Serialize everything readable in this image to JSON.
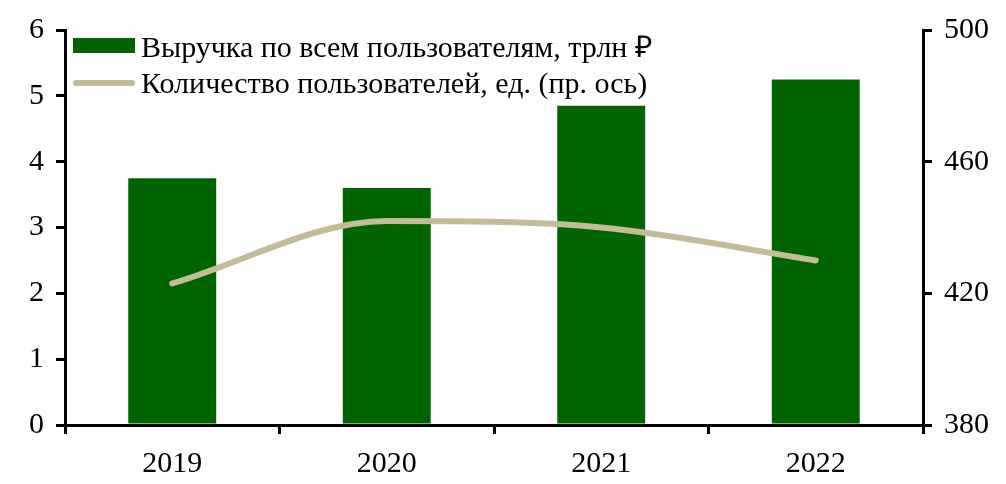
{
  "chart_data": {
    "type": "bar",
    "categories": [
      "2019",
      "2020",
      "2021",
      "2022"
    ],
    "series": [
      {
        "name": "Выручка по всем пользователям, трлн ₽",
        "color": "#006400",
        "values": [
          3.75,
          3.6,
          4.85,
          5.25
        ]
      },
      {
        "name": "Количество пользователей, ед. (пр. ось)",
        "type": "line",
        "axis": "y2",
        "color": "#c4bc98",
        "values": [
          423,
          442,
          440,
          430
        ]
      }
    ],
    "ylim": [
      0,
      6
    ],
    "yticks": [
      0,
      1,
      2,
      3,
      4,
      5,
      6
    ],
    "y2lim": [
      380,
      500
    ],
    "y2ticks": [
      380,
      420,
      460,
      500
    ],
    "grid": false,
    "legend": "top left",
    "marker": "none",
    "line_style": "solid"
  }
}
